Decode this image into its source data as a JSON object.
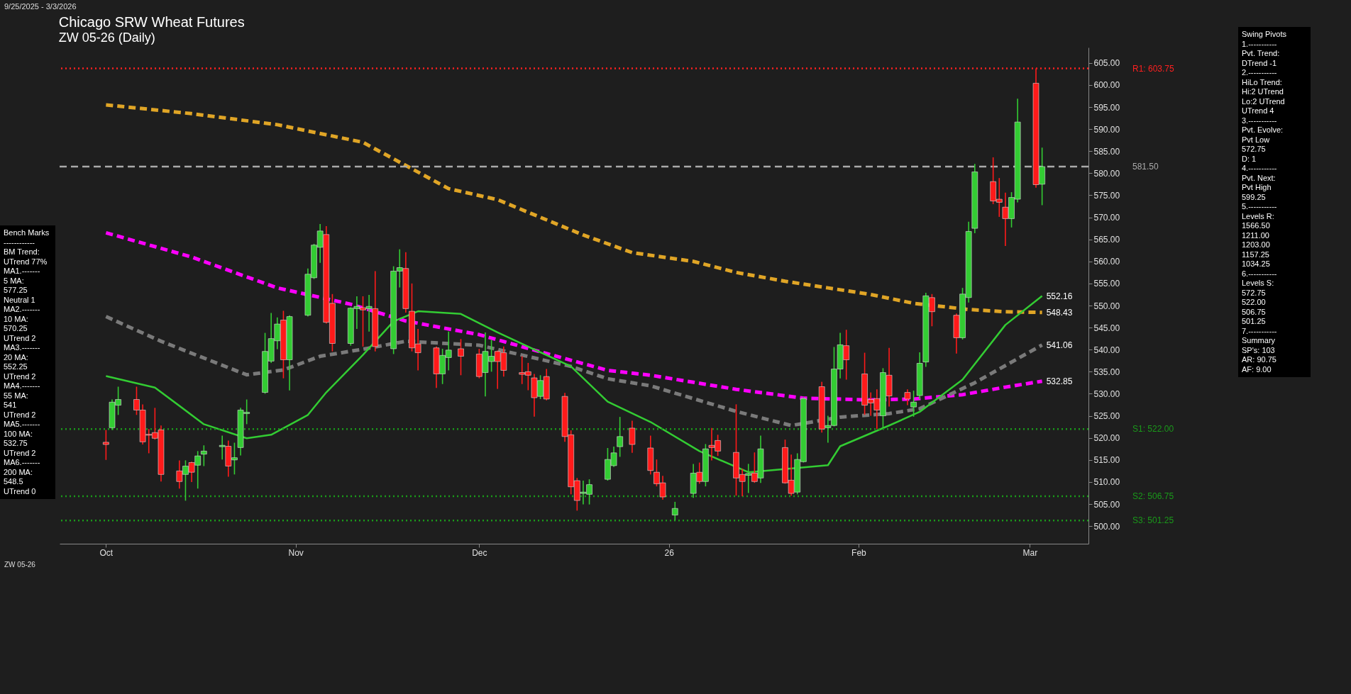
{
  "chart_data": {
    "type": "candlestick",
    "title": "Chicago SRW Wheat Futures",
    "subtitle": "ZW 05-26 (Daily)",
    "x": [
      "2025-10-01",
      "2025-10-02",
      "2025-10-03",
      "2025-10-06",
      "2025-10-07",
      "2025-10-08",
      "2025-10-09",
      "2025-10-10",
      "2025-10-13",
      "2025-10-14",
      "2025-10-15",
      "2025-10-16",
      "2025-10-17",
      "2025-10-20",
      "2025-10-21",
      "2025-10-22",
      "2025-10-23",
      "2025-10-24",
      "2025-10-27",
      "2025-10-28",
      "2025-10-29",
      "2025-10-30",
      "2025-10-31",
      "2025-11-03",
      "2025-11-04",
      "2025-11-05",
      "2025-11-06",
      "2025-11-07",
      "2025-11-10",
      "2025-11-11",
      "2025-11-12",
      "2025-11-13",
      "2025-11-14",
      "2025-11-17",
      "2025-11-18",
      "2025-11-19",
      "2025-11-20",
      "2025-11-21",
      "2025-11-24",
      "2025-11-25",
      "2025-11-26",
      "2025-11-28",
      "2025-12-01",
      "2025-12-02",
      "2025-12-03",
      "2025-12-04",
      "2025-12-05",
      "2025-12-08",
      "2025-12-09",
      "2025-12-10",
      "2025-12-11",
      "2025-12-12",
      "2025-12-15",
      "2025-12-16",
      "2025-12-17",
      "2025-12-18",
      "2025-12-19",
      "2025-12-22",
      "2025-12-23",
      "2025-12-24",
      "2025-12-26",
      "2025-12-29",
      "2025-12-30",
      "2025-12-31",
      "2026-01-02",
      "2026-01-05",
      "2026-01-06",
      "2026-01-07",
      "2026-01-08",
      "2026-01-09",
      "2026-01-12",
      "2026-01-13",
      "2026-01-14",
      "2026-01-15",
      "2026-01-16",
      "2026-01-20",
      "2026-01-21",
      "2026-01-22",
      "2026-01-23",
      "2026-01-26",
      "2026-01-27",
      "2026-01-28",
      "2026-01-29",
      "2026-01-30",
      "2026-02-02",
      "2026-02-03",
      "2026-02-04",
      "2026-02-05",
      "2026-02-06",
      "2026-02-09",
      "2026-02-10",
      "2026-02-11",
      "2026-02-12",
      "2026-02-13",
      "2026-02-17",
      "2026-02-18",
      "2026-02-19",
      "2026-02-20",
      "2026-02-23",
      "2026-02-24",
      "2026-02-25",
      "2026-02-26",
      "2026-02-27",
      "2026-03-02",
      "2026-03-03"
    ],
    "ohlc": [
      [
        519,
        521.8,
        515,
        518.5
      ],
      [
        522.3,
        528.7,
        521.8,
        528.1
      ],
      [
        527.4,
        531.6,
        525.2,
        528.7
      ],
      [
        528.7,
        531.6,
        525.2,
        526.3
      ],
      [
        526.3,
        527.6,
        518.5,
        519.1
      ],
      [
        520.8,
        522,
        516.5,
        520.6
      ],
      [
        521.2,
        526.8,
        519.6,
        519.9
      ],
      [
        521.8,
        522.8,
        510.1,
        511.7
      ],
      [
        512.5,
        514.9,
        508.5,
        510.1
      ],
      [
        511.7,
        514.9,
        505.75,
        513.6
      ],
      [
        514.4,
        514.6,
        510,
        512.2
      ],
      [
        513.8,
        517,
        508.5,
        515.9
      ],
      [
        516.3,
        518.3,
        513.6,
        517
      ],
      [
        518,
        520.5,
        515.1,
        518.3
      ],
      [
        518.1,
        519.4,
        511.2,
        513.6
      ],
      [
        515,
        518.9,
        511.7,
        515.5
      ],
      [
        517.8,
        526.8,
        516,
        526.3
      ],
      [
        525.5,
        528.7,
        523.1,
        525.8
      ],
      [
        530.3,
        543.8,
        530,
        539.6
      ],
      [
        537.4,
        548.3,
        537,
        542.5
      ],
      [
        542,
        547.3,
        540.1,
        545.8
      ],
      [
        546.7,
        548.8,
        533.5,
        537.7
      ],
      [
        537.7,
        547.8,
        530.75,
        547.5
      ],
      [
        547.8,
        558.4,
        547.5,
        557.1
      ],
      [
        556.3,
        564,
        556,
        563.7
      ],
      [
        563.2,
        568.5,
        559.7,
        566.9
      ],
      [
        566.1,
        568,
        545.9,
        546.2
      ],
      [
        550.5,
        552.6,
        539.6,
        541.4
      ],
      [
        541.4,
        549.6,
        540.9,
        549.4
      ],
      [
        549.3,
        552.1,
        544.7,
        549.8
      ],
      [
        549.5,
        552.1,
        540.7,
        549
      ],
      [
        549.3,
        552.4,
        544.1,
        549.8
      ],
      [
        549.3,
        557.8,
        539.6,
        540.7
      ],
      [
        540.2,
        558.9,
        539,
        557.8
      ],
      [
        557.8,
        562.75,
        554.1,
        558.6
      ],
      [
        558.4,
        562.1,
        548.4,
        549.3
      ],
      [
        548.7,
        555,
        539.6,
        540.4
      ],
      [
        541.3,
        544.7,
        535.3,
        539.3
      ],
      [
        540.4,
        540.7,
        531.3,
        534.5
      ],
      [
        534.5,
        540.2,
        532.2,
        538.7
      ],
      [
        538.2,
        544.1,
        535.3,
        539.9
      ],
      [
        540.2,
        542.4,
        534.2,
        538.5
      ],
      [
        539,
        540.2,
        533.5,
        533.9
      ],
      [
        534.8,
        543.9,
        529.4,
        539.6
      ],
      [
        537.3,
        542.2,
        535,
        538.5
      ],
      [
        539.6,
        539.8,
        531.1,
        537.3
      ],
      [
        539.3,
        540.7,
        533.9,
        535.3
      ],
      [
        534.8,
        538.5,
        532.2,
        534.4
      ],
      [
        535,
        537,
        530.8,
        534.2
      ],
      [
        533.6,
        534.5,
        524.8,
        529.1
      ],
      [
        529.4,
        534.2,
        528.8,
        533
      ],
      [
        533.9,
        535.6,
        528.5,
        528.8
      ],
      [
        529.4,
        530.2,
        519.1,
        520.3
      ],
      [
        520.7,
        521.7,
        507.2,
        508.9
      ],
      [
        510.3,
        510.9,
        503.5,
        505.8
      ],
      [
        507.4,
        510.3,
        504.9,
        507.7
      ],
      [
        507.2,
        510.6,
        504.9,
        509.4
      ],
      [
        510.6,
        517.7,
        510.3,
        515.1
      ],
      [
        513.7,
        518,
        513.4,
        516.6
      ],
      [
        518,
        524.75,
        515.7,
        520.3
      ],
      [
        522.2,
        523.9,
        516.6,
        518.5
      ],
      [
        517.7,
        520.5,
        511.7,
        512.6
      ],
      [
        512.2,
        515.1,
        509,
        509.6
      ],
      [
        509.8,
        511.4,
        506,
        506.6
      ],
      [
        502.5,
        505.5,
        501.25,
        504
      ],
      [
        507.4,
        514.1,
        506.4,
        512
      ],
      [
        512.2,
        514.4,
        509.6,
        510.1
      ],
      [
        510.1,
        518.6,
        509,
        517.5
      ],
      [
        518.3,
        522.25,
        514.9,
        517.8
      ],
      [
        519.4,
        520.7,
        515.9,
        517
      ],
      [
        516.7,
        527.6,
        506.9,
        510.9
      ],
      [
        511.7,
        513,
        506.75,
        510.1
      ],
      [
        511.5,
        514.1,
        507.5,
        511.9
      ],
      [
        512,
        516.7,
        509.8,
        510.1
      ],
      [
        510.9,
        520.5,
        509.8,
        517.5
      ],
      [
        517.8,
        519.6,
        509.6,
        509.8
      ],
      [
        510.4,
        516.2,
        506.9,
        507.4
      ],
      [
        507.7,
        516.5,
        507.2,
        515.1
      ],
      [
        514.6,
        529.2,
        514.4,
        528.9
      ],
      [
        531.6,
        532.7,
        521.2,
        522
      ],
      [
        522.3,
        525,
        518.9,
        522.8
      ],
      [
        522.8,
        540.6,
        522.6,
        535.6
      ],
      [
        535.6,
        543.8,
        533.5,
        541.1
      ],
      [
        540.9,
        544.5,
        533.2,
        537.7
      ],
      [
        534.5,
        539.3,
        525.2,
        527.4
      ],
      [
        528.7,
        530.3,
        525,
        527.9
      ],
      [
        528.9,
        531,
        522,
        526.3
      ],
      [
        525,
        535.8,
        522.3,
        534.8
      ],
      [
        534.2,
        540.4,
        527.1,
        529.5
      ],
      [
        530.3,
        531,
        527.4,
        528.8
      ],
      [
        527,
        530.7,
        524.8,
        528.1
      ],
      [
        529.6,
        539.4,
        528.8,
        536.9
      ],
      [
        537.2,
        552.9,
        536.1,
        552.2
      ],
      [
        551.8,
        552.6,
        545.3,
        548.6
      ],
      [
        547.8,
        548.2,
        539.1,
        542.7
      ],
      [
        542.7,
        554,
        542.3,
        552.6
      ],
      [
        551.8,
        569,
        550.7,
        566.8
      ],
      [
        567.5,
        582.1,
        566.4,
        580.3
      ],
      [
        578.1,
        583.6,
        573,
        573.7
      ],
      [
        574.1,
        578.9,
        570.1,
        573.4
      ],
      [
        572.3,
        575.6,
        563.5,
        569.7
      ],
      [
        569.7,
        575.7,
        567.7,
        574.5
      ],
      [
        574.1,
        596.9,
        573.4,
        591.6
      ],
      [
        600.4,
        603.75,
        576.7,
        577.4
      ],
      [
        577.5,
        585.8,
        572.75,
        581.5
      ]
    ],
    "series": [
      {
        "type": "line",
        "color": "#e0a526",
        "line_style": "dashed",
        "x": [
          "2025-10-01",
          "2025-10-15",
          "2025-10-29",
          "2025-11-12",
          "2025-11-26",
          "2025-12-04",
          "2025-12-11",
          "2025-12-18",
          "2025-12-26",
          "2026-01-05",
          "2026-01-12",
          "2026-01-20",
          "2026-01-27",
          "2026-02-03",
          "2026-02-10",
          "2026-02-19",
          "2026-02-25",
          "2026-03-03"
        ],
        "values": [
          595.5,
          593.5,
          591,
          587,
          576.5,
          574,
          570,
          566,
          562,
          560,
          557.5,
          555.5,
          554,
          552.5,
          550.5,
          549.1,
          548.6,
          548.43
        ]
      },
      {
        "type": "line",
        "color": "#ff00ff",
        "line_style": "dashed",
        "x": [
          "2025-10-01",
          "2025-10-15",
          "2025-10-29",
          "2025-11-10",
          "2025-11-19",
          "2025-12-01",
          "2025-12-11",
          "2025-12-22",
          "2025-12-29",
          "2026-01-12",
          "2026-01-23",
          "2026-02-03",
          "2026-02-10",
          "2026-02-18",
          "2026-02-25",
          "2026-03-03"
        ],
        "values": [
          566.5,
          561,
          554,
          550.3,
          546.5,
          543.4,
          539.5,
          535.3,
          534.2,
          531,
          529,
          528.6,
          528.8,
          529.8,
          531.5,
          532.85
        ]
      },
      {
        "type": "line",
        "color": "#7a7a7a",
        "line_style": "dashed",
        "x": [
          "2025-10-01",
          "2025-10-10",
          "2025-10-24",
          "2025-10-30",
          "2025-11-05",
          "2025-11-12",
          "2025-11-19",
          "2025-12-01",
          "2025-12-16",
          "2025-12-22",
          "2025-12-29",
          "2026-01-12",
          "2026-01-21",
          "2026-01-29",
          "2026-02-06",
          "2026-02-11",
          "2026-02-20",
          "2026-03-03"
        ],
        "values": [
          547.5,
          541.9,
          534.3,
          535.4,
          538.5,
          540.1,
          541.9,
          541,
          536.2,
          533.4,
          531.8,
          526,
          522.8,
          524.7,
          525.5,
          526.6,
          532.5,
          541.06
        ]
      },
      {
        "type": "line",
        "color": "#33cc33",
        "line_style": "solid",
        "x": [
          "2025-10-01",
          "2025-10-09",
          "2025-10-17",
          "2025-10-24",
          "2025-10-28",
          "2025-11-03",
          "2025-11-06",
          "2025-11-12",
          "2025-11-17",
          "2025-11-21",
          "2025-11-28",
          "2025-12-04",
          "2025-12-16",
          "2025-12-22",
          "2025-12-29",
          "2026-01-06",
          "2026-01-14",
          "2026-01-27",
          "2026-01-29",
          "2026-02-06",
          "2026-02-11",
          "2026-02-18",
          "2026-02-25",
          "2026-03-03"
        ],
        "values": [
          534,
          531.4,
          523.1,
          519.9,
          520.7,
          525.2,
          530.3,
          538.8,
          546.4,
          548.7,
          548.1,
          543.9,
          536.2,
          528.2,
          523.6,
          517,
          512.2,
          513.8,
          518.1,
          522.8,
          525.9,
          533.2,
          545.6,
          552.16
        ]
      }
    ],
    "xlim": [
      "2025-09-24",
      "2026-03-10"
    ],
    "xticks": [
      {
        "value": "2025-10-01",
        "label": "Oct"
      },
      {
        "value": "2025-11-01",
        "label": "Nov"
      },
      {
        "value": "2025-12-01",
        "label": "Dec"
      },
      {
        "value": "2026-01-01",
        "label": "26"
      },
      {
        "value": "2026-02-01",
        "label": "Feb"
      },
      {
        "value": "2026-03-01",
        "label": "Mar"
      }
    ],
    "ylim": [
      496,
      608.5
    ],
    "yticks": [
      {
        "value": 500,
        "label": "500.00"
      },
      {
        "value": 505,
        "label": "505.00"
      },
      {
        "value": 510,
        "label": "510.00"
      },
      {
        "value": 515,
        "label": "515.00"
      },
      {
        "value": 520,
        "label": "520.00"
      },
      {
        "value": 525,
        "label": "525.00"
      },
      {
        "value": 530,
        "label": "530.00"
      },
      {
        "value": 535,
        "label": "535.00"
      },
      {
        "value": 540,
        "label": "540.00"
      },
      {
        "value": 545,
        "label": "545.00"
      },
      {
        "value": 550,
        "label": "550.00"
      },
      {
        "value": 555,
        "label": "555.00"
      },
      {
        "value": 560,
        "label": "560.00"
      },
      {
        "value": 565,
        "label": "565.00"
      },
      {
        "value": 570,
        "label": "570.00"
      },
      {
        "value": 575,
        "label": "575.00"
      },
      {
        "value": 580,
        "label": "580.00"
      },
      {
        "value": 585,
        "label": "585.00"
      },
      {
        "value": 590,
        "label": "590.00"
      },
      {
        "value": 595,
        "label": "595.00"
      },
      {
        "value": 600,
        "label": "600.00"
      },
      {
        "value": 605,
        "label": "605.00"
      }
    ],
    "ref_lines": [
      {
        "axis": "y",
        "value": 603.75,
        "label": "R1: 603.75",
        "color": "#ff2020",
        "line_style": "dotted"
      },
      {
        "axis": "y",
        "value": 581.5,
        "label": "581.50",
        "color": "#aaaaaa",
        "line_style": "dashed"
      },
      {
        "axis": "y",
        "value": 522,
        "label": "S1: 522.00",
        "color": "#1a9a1a",
        "line_style": "dotted"
      },
      {
        "axis": "y",
        "value": 506.75,
        "label": "S2: 506.75",
        "color": "#1a9a1a",
        "line_style": "dotted"
      },
      {
        "axis": "y",
        "value": 501.25,
        "label": "S3: 501.25",
        "color": "#1a9a1a",
        "line_style": "dotted"
      }
    ],
    "annotations": [
      "9/25/2025 - 3/3/2026",
      "Bench Marks\n------------\nBM Trend:\nUTrend 77%\nMA1.-------\n5 MA:\n577.25\nNeutral 1\nMA2.-------\n10 MA:\n570.25\nUTrend 2\nMA3.-------\n20 MA:\n552.25\nUTrend 2\nMA4.-------\n55 MA:\n541\nUTrend 2\nMA5.-------\n100 MA:\n532.75\nUTrend 2\nMA6.-------\n200 MA:\n548.5\nUTrend 0",
      "Swing Pivots\n1.-----------\nPvt. Trend:\nDTrend -1\n2.-----------\nHiLo Trend:\nHi:2 UTrend\nLo:2 UTrend\nUTrend 4\n3.-----------\nPvt. Evolve:\nPvt Low\n572.75\nD: 1\n4.-----------\nPvt. Next:\nPvt High\n599.25\n5.-----------\nLevels R:\n1566.50\n1211.00\n1203.00\n1157.25\n1034.25\n6.-----------\nLevels S:\n572.75\n522.00\n506.75\n501.25\n7.-----------\nSummary\nSP's: 103\nAR: 90.75\nAF: 9.00",
      "ZW 05-26",
      {
        "text": "552.16",
        "x": "2026-03-03",
        "y": 552.16
      },
      {
        "text": "548.43",
        "x": "2026-03-03",
        "y": 548.43
      },
      {
        "text": "541.06",
        "x": "2026-03-03",
        "y": 541.06
      },
      {
        "text": "532.85",
        "x": "2026-03-03",
        "y": 532.85
      }
    ]
  }
}
